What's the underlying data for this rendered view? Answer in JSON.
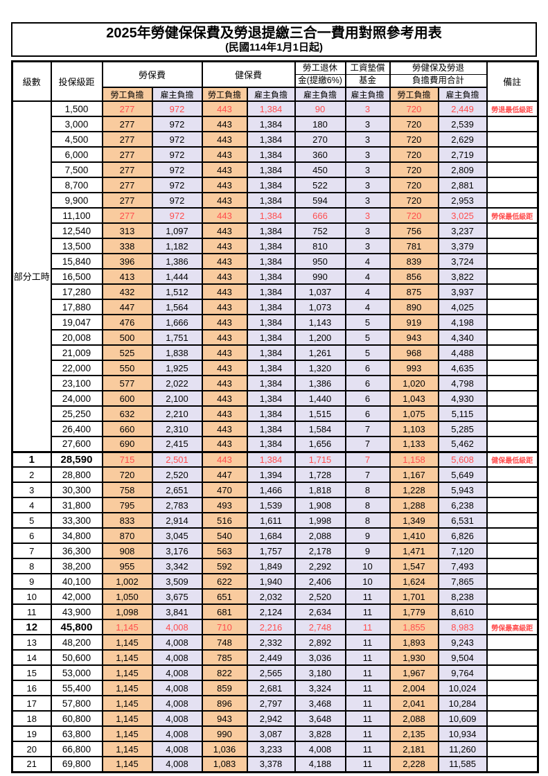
{
  "title": "2025年勞健保保費及勞退提繳三合一費用對照參考用表",
  "subtitle": "(民國114年1月1日起)",
  "colors": {
    "employee_bg": "#F9CB9E",
    "employer_bg": "#E4E1F2",
    "red_text": "#FF4D4D",
    "border": "#000000"
  },
  "header": {
    "level": "級數",
    "bracket": "投保級距",
    "labor_insurance": "勞保費",
    "health_insurance": "健保費",
    "pension_line1": "勞工退休",
    "pension_line2": "金(提繳6%)",
    "wage_fund_line1": "工資墊償",
    "wage_fund_line2": "基金",
    "total_line1": "勞健保及勞退",
    "total_line2": "負擔費用合計",
    "remarks": "備註",
    "employee_label": "勞工負擔",
    "employer_label": "雇主負擔"
  },
  "part_time_label": "部分工時",
  "part_time_rowspan": 23,
  "rows": [
    {
      "level": "",
      "bracket": "1,500",
      "values": [
        "277",
        "972",
        "443",
        "1,384",
        "90",
        "3",
        "720",
        "2,449"
      ],
      "note": "勞退最低級距",
      "red": true,
      "bold": false
    },
    {
      "level": "",
      "bracket": "3,000",
      "values": [
        "277",
        "972",
        "443",
        "1,384",
        "180",
        "3",
        "720",
        "2,539"
      ],
      "note": "",
      "red": false,
      "bold": false
    },
    {
      "level": "",
      "bracket": "4,500",
      "values": [
        "277",
        "972",
        "443",
        "1,384",
        "270",
        "3",
        "720",
        "2,629"
      ],
      "note": "",
      "red": false,
      "bold": false
    },
    {
      "level": "",
      "bracket": "6,000",
      "values": [
        "277",
        "972",
        "443",
        "1,384",
        "360",
        "3",
        "720",
        "2,719"
      ],
      "note": "",
      "red": false,
      "bold": false
    },
    {
      "level": "",
      "bracket": "7,500",
      "values": [
        "277",
        "972",
        "443",
        "1,384",
        "450",
        "3",
        "720",
        "2,809"
      ],
      "note": "",
      "red": false,
      "bold": false
    },
    {
      "level": "",
      "bracket": "8,700",
      "values": [
        "277",
        "972",
        "443",
        "1,384",
        "522",
        "3",
        "720",
        "2,881"
      ],
      "note": "",
      "red": false,
      "bold": false
    },
    {
      "level": "",
      "bracket": "9,900",
      "values": [
        "277",
        "972",
        "443",
        "1,384",
        "594",
        "3",
        "720",
        "2,953"
      ],
      "note": "",
      "red": false,
      "bold": false
    },
    {
      "level": "",
      "bracket": "11,100",
      "values": [
        "277",
        "972",
        "443",
        "1,384",
        "666",
        "3",
        "720",
        "3,025"
      ],
      "note": "勞保最低級距",
      "red": true,
      "bold": false
    },
    {
      "level": "",
      "bracket": "12,540",
      "values": [
        "313",
        "1,097",
        "443",
        "1,384",
        "752",
        "3",
        "756",
        "3,237"
      ],
      "note": "",
      "red": false,
      "bold": false
    },
    {
      "level": "",
      "bracket": "13,500",
      "values": [
        "338",
        "1,182",
        "443",
        "1,384",
        "810",
        "3",
        "781",
        "3,379"
      ],
      "note": "",
      "red": false,
      "bold": false
    },
    {
      "level": "",
      "bracket": "15,840",
      "values": [
        "396",
        "1,386",
        "443",
        "1,384",
        "950",
        "4",
        "839",
        "3,724"
      ],
      "note": "",
      "red": false,
      "bold": false
    },
    {
      "level": "",
      "bracket": "16,500",
      "values": [
        "413",
        "1,444",
        "443",
        "1,384",
        "990",
        "4",
        "856",
        "3,822"
      ],
      "note": "",
      "red": false,
      "bold": false
    },
    {
      "level": "",
      "bracket": "17,280",
      "values": [
        "432",
        "1,512",
        "443",
        "1,384",
        "1,037",
        "4",
        "875",
        "3,937"
      ],
      "note": "",
      "red": false,
      "bold": false
    },
    {
      "level": "",
      "bracket": "17,880",
      "values": [
        "447",
        "1,564",
        "443",
        "1,384",
        "1,073",
        "4",
        "890",
        "4,025"
      ],
      "note": "",
      "red": false,
      "bold": false
    },
    {
      "level": "",
      "bracket": "19,047",
      "values": [
        "476",
        "1,666",
        "443",
        "1,384",
        "1,143",
        "5",
        "919",
        "4,198"
      ],
      "note": "",
      "red": false,
      "bold": false
    },
    {
      "level": "",
      "bracket": "20,008",
      "values": [
        "500",
        "1,751",
        "443",
        "1,384",
        "1,200",
        "5",
        "943",
        "4,340"
      ],
      "note": "",
      "red": false,
      "bold": false
    },
    {
      "level": "",
      "bracket": "21,009",
      "values": [
        "525",
        "1,838",
        "443",
        "1,384",
        "1,261",
        "5",
        "968",
        "4,488"
      ],
      "note": "",
      "red": false,
      "bold": false
    },
    {
      "level": "",
      "bracket": "22,000",
      "values": [
        "550",
        "1,925",
        "443",
        "1,384",
        "1,320",
        "6",
        "993",
        "4,635"
      ],
      "note": "",
      "red": false,
      "bold": false
    },
    {
      "level": "",
      "bracket": "23,100",
      "values": [
        "577",
        "2,022",
        "443",
        "1,384",
        "1,386",
        "6",
        "1,020",
        "4,798"
      ],
      "note": "",
      "red": false,
      "bold": false
    },
    {
      "level": "",
      "bracket": "24,000",
      "values": [
        "600",
        "2,100",
        "443",
        "1,384",
        "1,440",
        "6",
        "1,043",
        "4,930"
      ],
      "note": "",
      "red": false,
      "bold": false
    },
    {
      "level": "",
      "bracket": "25,250",
      "values": [
        "632",
        "2,210",
        "443",
        "1,384",
        "1,515",
        "6",
        "1,075",
        "5,115"
      ],
      "note": "",
      "red": false,
      "bold": false
    },
    {
      "level": "",
      "bracket": "26,400",
      "values": [
        "660",
        "2,310",
        "443",
        "1,384",
        "1,584",
        "7",
        "1,103",
        "5,285"
      ],
      "note": "",
      "red": false,
      "bold": false
    },
    {
      "level": "",
      "bracket": "27,600",
      "values": [
        "690",
        "2,415",
        "443",
        "1,384",
        "1,656",
        "7",
        "1,133",
        "5,462"
      ],
      "note": "",
      "red": false,
      "bold": false
    },
    {
      "level": "1",
      "bracket": "28,590",
      "values": [
        "715",
        "2,501",
        "443",
        "1,384",
        "1,715",
        "7",
        "1,158",
        "5,608"
      ],
      "note": "健保最低級距",
      "red": true,
      "bold": true
    },
    {
      "level": "2",
      "bracket": "28,800",
      "values": [
        "720",
        "2,520",
        "447",
        "1,394",
        "1,728",
        "7",
        "1,167",
        "5,649"
      ],
      "note": "",
      "red": false,
      "bold": false
    },
    {
      "level": "3",
      "bracket": "30,300",
      "values": [
        "758",
        "2,651",
        "470",
        "1,466",
        "1,818",
        "8",
        "1,228",
        "5,943"
      ],
      "note": "",
      "red": false,
      "bold": false
    },
    {
      "level": "4",
      "bracket": "31,800",
      "values": [
        "795",
        "2,783",
        "493",
        "1,539",
        "1,908",
        "8",
        "1,288",
        "6,238"
      ],
      "note": "",
      "red": false,
      "bold": false
    },
    {
      "level": "5",
      "bracket": "33,300",
      "values": [
        "833",
        "2,914",
        "516",
        "1,611",
        "1,998",
        "8",
        "1,349",
        "6,531"
      ],
      "note": "",
      "red": false,
      "bold": false
    },
    {
      "level": "6",
      "bracket": "34,800",
      "values": [
        "870",
        "3,045",
        "540",
        "1,684",
        "2,088",
        "9",
        "1,410",
        "6,826"
      ],
      "note": "",
      "red": false,
      "bold": false
    },
    {
      "level": "7",
      "bracket": "36,300",
      "values": [
        "908",
        "3,176",
        "563",
        "1,757",
        "2,178",
        "9",
        "1,471",
        "7,120"
      ],
      "note": "",
      "red": false,
      "bold": false
    },
    {
      "level": "8",
      "bracket": "38,200",
      "values": [
        "955",
        "3,342",
        "592",
        "1,849",
        "2,292",
        "10",
        "1,547",
        "7,493"
      ],
      "note": "",
      "red": false,
      "bold": false
    },
    {
      "level": "9",
      "bracket": "40,100",
      "values": [
        "1,002",
        "3,509",
        "622",
        "1,940",
        "2,406",
        "10",
        "1,624",
        "7,865"
      ],
      "note": "",
      "red": false,
      "bold": false
    },
    {
      "level": "10",
      "bracket": "42,000",
      "values": [
        "1,050",
        "3,675",
        "651",
        "2,032",
        "2,520",
        "11",
        "1,701",
        "8,238"
      ],
      "note": "",
      "red": false,
      "bold": false
    },
    {
      "level": "11",
      "bracket": "43,900",
      "values": [
        "1,098",
        "3,841",
        "681",
        "2,124",
        "2,634",
        "11",
        "1,779",
        "8,610"
      ],
      "note": "",
      "red": false,
      "bold": false
    },
    {
      "level": "12",
      "bracket": "45,800",
      "values": [
        "1,145",
        "4,008",
        "710",
        "2,216",
        "2,748",
        "11",
        "1,855",
        "8,983"
      ],
      "note": "勞保最高級距",
      "red": true,
      "bold": true
    },
    {
      "level": "13",
      "bracket": "48,200",
      "values": [
        "1,145",
        "4,008",
        "748",
        "2,332",
        "2,892",
        "11",
        "1,893",
        "9,243"
      ],
      "note": "",
      "red": false,
      "bold": false
    },
    {
      "level": "14",
      "bracket": "50,600",
      "values": [
        "1,145",
        "4,008",
        "785",
        "2,449",
        "3,036",
        "11",
        "1,930",
        "9,504"
      ],
      "note": "",
      "red": false,
      "bold": false
    },
    {
      "level": "15",
      "bracket": "53,000",
      "values": [
        "1,145",
        "4,008",
        "822",
        "2,565",
        "3,180",
        "11",
        "1,967",
        "9,764"
      ],
      "note": "",
      "red": false,
      "bold": false
    },
    {
      "level": "16",
      "bracket": "55,400",
      "values": [
        "1,145",
        "4,008",
        "859",
        "2,681",
        "3,324",
        "11",
        "2,004",
        "10,024"
      ],
      "note": "",
      "red": false,
      "bold": false
    },
    {
      "level": "17",
      "bracket": "57,800",
      "values": [
        "1,145",
        "4,008",
        "896",
        "2,797",
        "3,468",
        "11",
        "2,041",
        "10,284"
      ],
      "note": "",
      "red": false,
      "bold": false
    },
    {
      "level": "18",
      "bracket": "60,800",
      "values": [
        "1,145",
        "4,008",
        "943",
        "2,942",
        "3,648",
        "11",
        "2,088",
        "10,609"
      ],
      "note": "",
      "red": false,
      "bold": false
    },
    {
      "level": "19",
      "bracket": "63,800",
      "values": [
        "1,145",
        "4,008",
        "990",
        "3,087",
        "3,828",
        "11",
        "2,135",
        "10,934"
      ],
      "note": "",
      "red": false,
      "bold": false
    },
    {
      "level": "20",
      "bracket": "66,800",
      "values": [
        "1,145",
        "4,008",
        "1,036",
        "3,233",
        "4,008",
        "11",
        "2,181",
        "11,260"
      ],
      "note": "",
      "red": false,
      "bold": false
    },
    {
      "level": "21",
      "bracket": "69,800",
      "values": [
        "1,145",
        "4,008",
        "1,083",
        "3,378",
        "4,188",
        "11",
        "2,228",
        "11,585"
      ],
      "note": "",
      "red": false,
      "bold": false
    }
  ]
}
